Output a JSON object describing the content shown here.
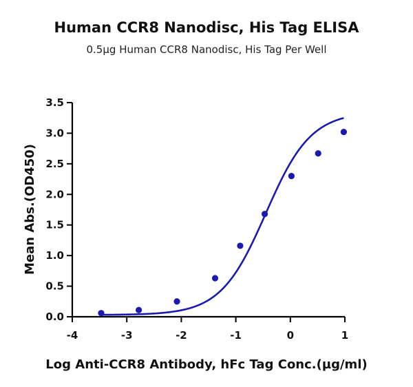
{
  "chart_data": {
    "type": "scatter",
    "title": "Human CCR8 Nanodisc, His Tag ELISA",
    "subtitle": "0.5µg Human CCR8 Nanodisc, His Tag Per Well",
    "xlabel": "Log  Anti-CCR8 Antibody, hFc Tag Conc.(µg/ml)",
    "ylabel": "Mean Abs.(OD450)",
    "xlim": [
      -4,
      1
    ],
    "ylim": [
      0,
      3.5
    ],
    "xticks": [
      "-4",
      "-3",
      "-2",
      "-1",
      "0",
      "1"
    ],
    "yticks": [
      "0.0",
      "0.5",
      "1.0",
      "1.5",
      "2.0",
      "2.5",
      "3.0",
      "3.5"
    ],
    "grid": false,
    "series": [
      {
        "color": "#1a1ab0",
        "x": [
          -3.47,
          -2.78,
          -2.08,
          -1.38,
          -0.92,
          -0.47,
          0.02,
          0.51,
          0.98
        ],
        "y": [
          0.06,
          0.11,
          0.25,
          0.63,
          1.16,
          1.68,
          2.3,
          2.67,
          3.02
        ]
      }
    ],
    "fit_curve": {
      "model": "4PL",
      "bottom": 0.03,
      "top": 3.35,
      "log_ec50": -0.45,
      "hill": 1.05,
      "color": "#1a1ab0"
    }
  }
}
